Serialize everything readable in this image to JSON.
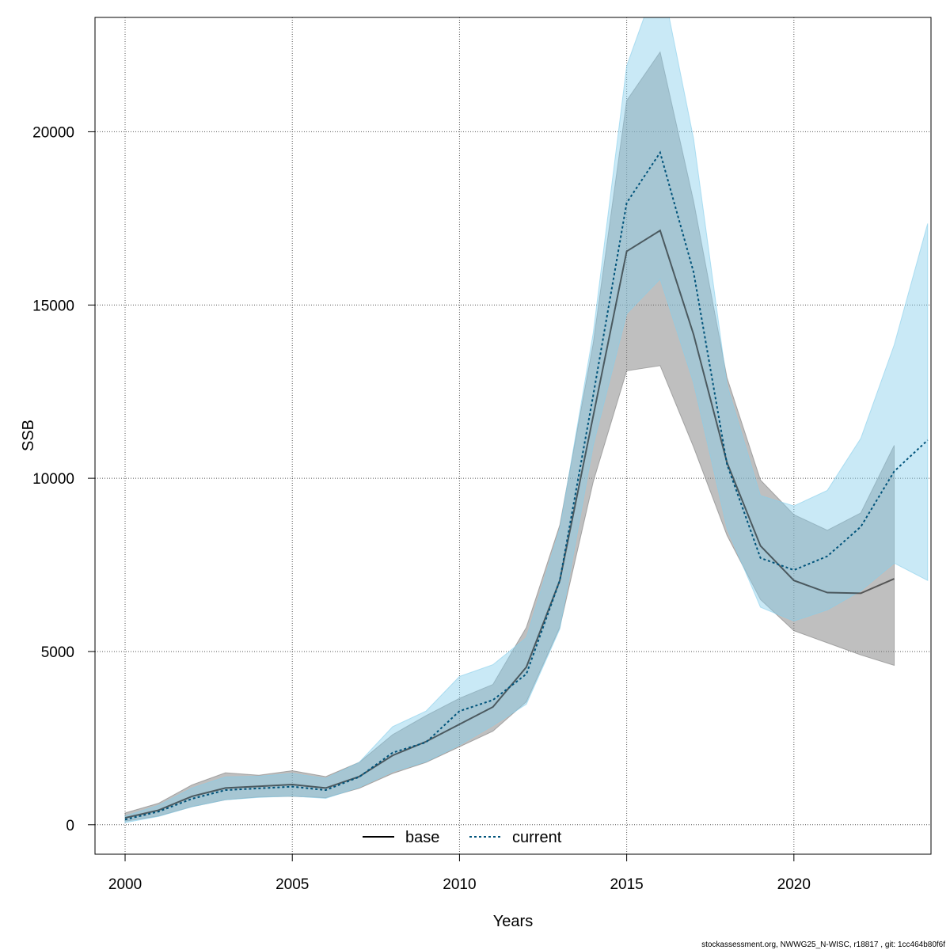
{
  "chart_data": {
    "type": "line",
    "xlabel": "Years",
    "ylabel": "SSB",
    "xlim": [
      1999.1,
      2024.1
    ],
    "ylim": [
      -850,
      23300
    ],
    "x_ticks": [
      "2000",
      "2005",
      "2010",
      "2015",
      "2020"
    ],
    "y_ticks": [
      "0",
      "5000",
      "10000",
      "15000",
      "20000"
    ],
    "grid": true,
    "legend_position": "bottom-center",
    "series": [
      {
        "name": "base",
        "color": "#000000",
        "band_color": "#7f7f7f",
        "x": [
          2000,
          2001,
          2002,
          2003,
          2004,
          2005,
          2006,
          2007,
          2008,
          2009,
          2010,
          2011,
          2012,
          2013,
          2014,
          2015,
          2016,
          2017,
          2018,
          2019,
          2020,
          2021,
          2022,
          2023
        ],
        "values": [
          200,
          420,
          820,
          1060,
          1110,
          1160,
          1060,
          1390,
          2000,
          2400,
          2900,
          3400,
          4550,
          7050,
          11800,
          16550,
          17150,
          14150,
          10450,
          8050,
          7050,
          6700,
          6680,
          7100
        ],
        "lower": [
          100,
          250,
          520,
          720,
          800,
          820,
          780,
          1050,
          1480,
          1800,
          2250,
          2700,
          3550,
          5700,
          9900,
          13100,
          13250,
          10900,
          8350,
          6500,
          5600,
          5250,
          4900,
          4600
        ],
        "upper": [
          340,
          620,
          1150,
          1500,
          1430,
          1560,
          1390,
          1800,
          2600,
          3150,
          3650,
          4050,
          5700,
          8650,
          13900,
          20900,
          22300,
          18000,
          12900,
          9950,
          8950,
          8500,
          9000,
          10950
        ]
      },
      {
        "name": "current",
        "color": "#00537a",
        "band_color": "#87ceeb",
        "x": [
          2000,
          2001,
          2002,
          2003,
          2004,
          2005,
          2006,
          2007,
          2008,
          2009,
          2010,
          2011,
          2012,
          2013,
          2014,
          2015,
          2016,
          2017,
          2018,
          2019,
          2020,
          2021,
          2022,
          2023,
          2024
        ],
        "values": [
          150,
          380,
          750,
          1000,
          1050,
          1100,
          1000,
          1380,
          2080,
          2380,
          3280,
          3600,
          4350,
          7050,
          12400,
          17950,
          19400,
          15950,
          10400,
          7700,
          7350,
          7750,
          8600,
          10200,
          11100
        ],
        "lower": [
          60,
          240,
          520,
          720,
          790,
          830,
          760,
          1080,
          1530,
          1820,
          2300,
          2860,
          3480,
          5650,
          10950,
          14750,
          15750,
          12750,
          8550,
          6280,
          5880,
          6200,
          6750,
          7550,
          7050
        ],
        "upper": [
          250,
          560,
          1060,
          1380,
          1400,
          1480,
          1340,
          1800,
          2830,
          3280,
          4280,
          4620,
          5400,
          8550,
          14200,
          21900,
          24600,
          19800,
          12700,
          9500,
          9200,
          9650,
          11150,
          13850,
          17350
        ]
      }
    ]
  },
  "footer": {
    "text": "stockassessment.org, NWWG25_N-WISC, r18817 , git: 1cc464b80f6f"
  }
}
